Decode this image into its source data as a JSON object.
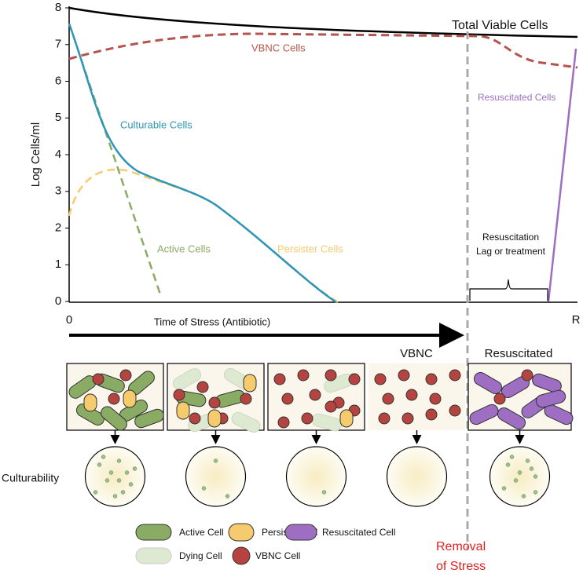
{
  "chart": {
    "y_axis_label": "Log Cells/ml",
    "y_ticks": [
      0,
      1,
      2,
      3,
      4,
      5,
      6,
      7,
      8
    ],
    "x_start": "0",
    "x_end": "R",
    "x_axis_label": "Time of Stress (Antibiotic)",
    "curve_labels": {
      "total": "Total Viable Cells",
      "vbnc": "VBNC Cells",
      "resuscitated": "Resuscitated Cells",
      "culturable": "Culturable Cells",
      "active": "Active Cells",
      "persister": "Persister Cells"
    },
    "resuscitation_note": [
      "Resuscitation",
      "Lag or treatment"
    ]
  },
  "panels": {
    "vbnc_label": "VBNC",
    "resuscitated_label": "Resuscitated"
  },
  "culturability_label": "Culturability",
  "legend": [
    "Active Cell",
    "Persister Cell",
    "Resuscitated Cell",
    "Dying Cell",
    "VBNC Cell"
  ],
  "removal_note": [
    "Removal",
    "of Stress"
  ]
}
